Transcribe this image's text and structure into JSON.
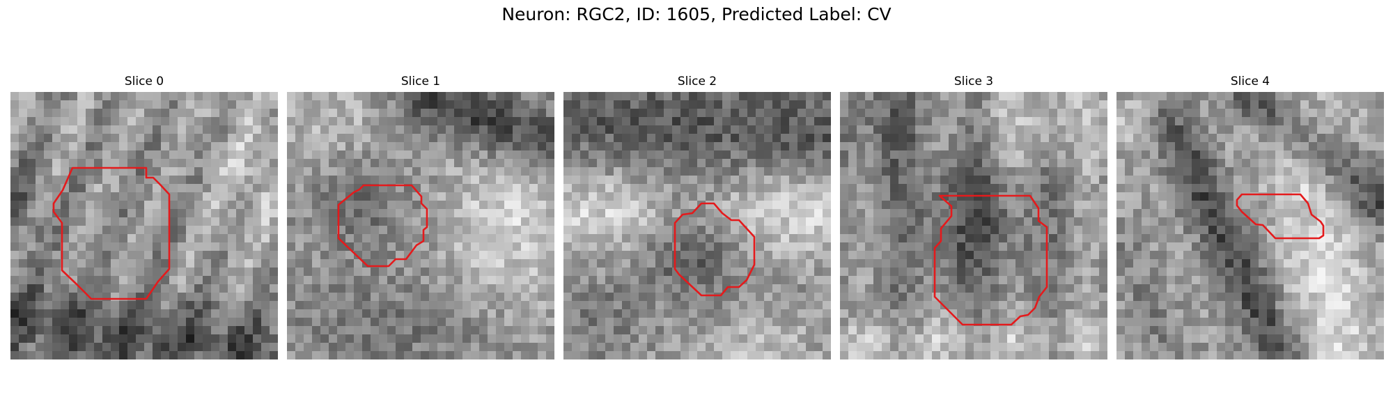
{
  "figure": {
    "title": "Neuron: RGC2, ID: 1605, Predicted Label: CV"
  },
  "panels": [
    {
      "title": "Slice 0"
    },
    {
      "title": "Slice 1"
    },
    {
      "title": "Slice 2"
    },
    {
      "title": "Slice 3"
    },
    {
      "title": "Slice 4"
    }
  ],
  "colors": {
    "contour": "#e41a1c",
    "colormap": "gray"
  }
}
